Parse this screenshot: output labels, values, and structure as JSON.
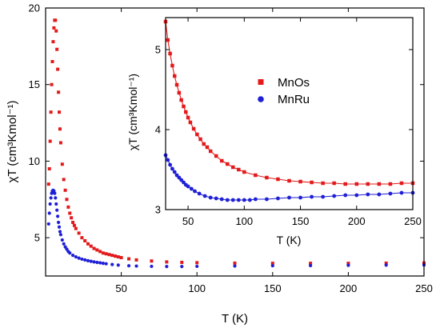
{
  "chart_data": [
    {
      "type": "scatter",
      "xlabel": "T (K)",
      "ylabel": "χT (cm³Kmol⁻¹)",
      "xlim": [
        0,
        250
      ],
      "ylim": [
        2.5,
        20
      ],
      "xticks": [
        50,
        100,
        150,
        200,
        250
      ],
      "yticks": [
        5,
        10,
        15,
        20
      ],
      "grid": false,
      "series": [
        {
          "name": "MnOs",
          "color": "#e31a1c",
          "marker": "square",
          "x": [
            2,
            2.5,
            3,
            3.5,
            4,
            4.5,
            5,
            5.5,
            6,
            6.5,
            7,
            7.5,
            8,
            8.5,
            9,
            9.5,
            10,
            11,
            12,
            13,
            14,
            15,
            16,
            17,
            18,
            19,
            20,
            22,
            24,
            26,
            28,
            30,
            32,
            34,
            36,
            38,
            40,
            42,
            44,
            46,
            48,
            50,
            55,
            60,
            70,
            80,
            90,
            100,
            125,
            150,
            175,
            200,
            225,
            250
          ],
          "y": [
            8.5,
            9.5,
            11.3,
            13.2,
            15.0,
            16.5,
            17.8,
            18.7,
            19.2,
            19.2,
            18.5,
            17.3,
            16.0,
            14.5,
            13.2,
            12.1,
            11.2,
            9.8,
            8.8,
            8.1,
            7.5,
            7.0,
            6.6,
            6.3,
            6.0,
            5.8,
            5.6,
            5.3,
            5.0,
            4.8,
            4.6,
            4.45,
            4.3,
            4.2,
            4.1,
            4.0,
            3.95,
            3.9,
            3.85,
            3.8,
            3.75,
            3.7,
            3.62,
            3.55,
            3.48,
            3.42,
            3.39,
            3.37,
            3.34,
            3.33,
            3.33,
            3.33,
            3.34,
            3.35
          ]
        },
        {
          "name": "MnRu",
          "color": "#1f1fd6",
          "marker": "circle",
          "x": [
            2,
            2.5,
            3,
            3.5,
            4,
            4.5,
            5,
            5.5,
            6,
            6.5,
            7,
            7.5,
            8,
            8.5,
            9,
            9.5,
            10,
            11,
            12,
            13,
            14,
            15,
            16,
            18,
            20,
            22,
            24,
            26,
            28,
            30,
            32,
            34,
            36,
            38,
            40,
            44,
            48,
            55,
            60,
            70,
            80,
            90,
            100,
            125,
            150,
            175,
            200,
            225,
            250
          ],
          "y": [
            5.9,
            6.6,
            7.2,
            7.6,
            7.9,
            8.05,
            8.1,
            8.05,
            7.9,
            7.6,
            7.2,
            6.8,
            6.4,
            6.0,
            5.7,
            5.4,
            5.2,
            4.85,
            4.6,
            4.4,
            4.25,
            4.1,
            4.0,
            3.85,
            3.75,
            3.67,
            3.6,
            3.55,
            3.5,
            3.46,
            3.42,
            3.39,
            3.36,
            3.33,
            3.3,
            3.25,
            3.21,
            3.17,
            3.15,
            3.13,
            3.12,
            3.12,
            3.13,
            3.15,
            3.17,
            3.18,
            3.2,
            3.21,
            3.22
          ]
        }
      ]
    },
    {
      "type": "scatter",
      "xlabel": "T (K)",
      "ylabel": "χT (cm³Kmol⁻¹)",
      "xlim": [
        30,
        250
      ],
      "ylim": [
        3.0,
        5.4
      ],
      "xticks": [
        50,
        100,
        150,
        200,
        250
      ],
      "yticks": [
        3,
        4,
        5
      ],
      "legend": "top-right",
      "grid": false,
      "fit_lines": true,
      "series": [
        {
          "name": "MnOs",
          "color": "#e31a1c",
          "marker": "square",
          "x": [
            30,
            32,
            34,
            36,
            38,
            40,
            42,
            44,
            46,
            48,
            50,
            52,
            55,
            58,
            61,
            64,
            67,
            70,
            75,
            80,
            85,
            90,
            95,
            100,
            110,
            120,
            130,
            140,
            150,
            160,
            170,
            180,
            190,
            200,
            210,
            220,
            230,
            240,
            250
          ],
          "y": [
            5.35,
            5.12,
            4.95,
            4.8,
            4.67,
            4.56,
            4.46,
            4.37,
            4.29,
            4.22,
            4.15,
            4.09,
            4.01,
            3.94,
            3.88,
            3.82,
            3.78,
            3.73,
            3.67,
            3.61,
            3.57,
            3.53,
            3.5,
            3.47,
            3.43,
            3.4,
            3.38,
            3.36,
            3.35,
            3.34,
            3.33,
            3.33,
            3.32,
            3.32,
            3.32,
            3.32,
            3.32,
            3.33,
            3.33
          ]
        },
        {
          "name": "MnRu",
          "color": "#1f1fd6",
          "marker": "circle",
          "x": [
            30,
            32,
            34,
            36,
            38,
            40,
            42,
            44,
            46,
            48,
            50,
            53,
            56,
            60,
            65,
            70,
            75,
            80,
            85,
            90,
            95,
            100,
            105,
            110,
            120,
            130,
            140,
            150,
            160,
            170,
            180,
            190,
            200,
            210,
            220,
            230,
            240,
            250
          ],
          "y": [
            3.68,
            3.62,
            3.56,
            3.51,
            3.47,
            3.43,
            3.4,
            3.37,
            3.34,
            3.31,
            3.29,
            3.26,
            3.23,
            3.2,
            3.17,
            3.15,
            3.14,
            3.13,
            3.12,
            3.12,
            3.12,
            3.12,
            3.12,
            3.13,
            3.13,
            3.14,
            3.15,
            3.15,
            3.16,
            3.16,
            3.17,
            3.18,
            3.18,
            3.19,
            3.19,
            3.2,
            3.21,
            3.21
          ]
        }
      ]
    }
  ]
}
